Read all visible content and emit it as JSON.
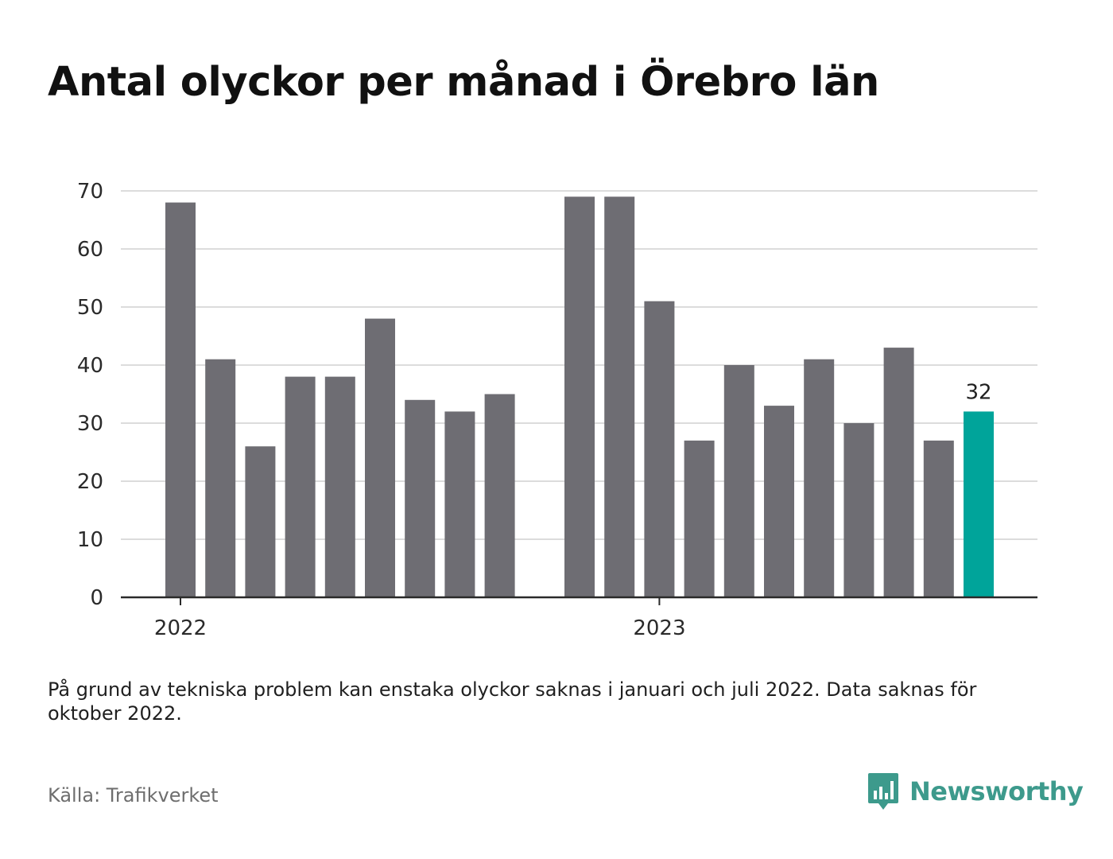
{
  "title": "Antal olyckor per månad i Örebro län",
  "note": "På grund av tekniska problem kan enstaka olyckor saknas i januari och juli 2022. Data saknas för oktober 2022.",
  "source": "Källa: Trafikverket",
  "brand": {
    "name": "Newsworthy",
    "icon": "newsworthy-logo-icon",
    "color": "#3d9a8c"
  },
  "chart_data": {
    "type": "bar",
    "categories": [
      "2022-01",
      "2022-02",
      "2022-03",
      "2022-04",
      "2022-05",
      "2022-06",
      "2022-07",
      "2022-08",
      "2022-09",
      "2022-10",
      "2022-11",
      "2022-12",
      "2023-01",
      "2023-02",
      "2023-03",
      "2023-04",
      "2023-05",
      "2023-06",
      "2023-07",
      "2023-08",
      "2023-09",
      "2023-10",
      "2023-11",
      "2023-12"
    ],
    "values": [
      68,
      41,
      26,
      38,
      38,
      48,
      34,
      32,
      35,
      null,
      69,
      69,
      51,
      27,
      40,
      33,
      41,
      30,
      43,
      27,
      32,
      null,
      null,
      null
    ],
    "ylim": [
      0,
      70
    ],
    "yticks": [
      0,
      10,
      20,
      30,
      40,
      50,
      60,
      70
    ],
    "xtick_labels": [
      {
        "label": "2022",
        "at": "2022-01"
      },
      {
        "label": "2023",
        "at": "2023-01"
      }
    ],
    "highlight": {
      "category": "2023-09",
      "value_label": "32",
      "color": "#00a49a"
    },
    "bar_color": "#6e6d73",
    "grid": true,
    "title": "",
    "xlabel": "",
    "ylabel": ""
  }
}
